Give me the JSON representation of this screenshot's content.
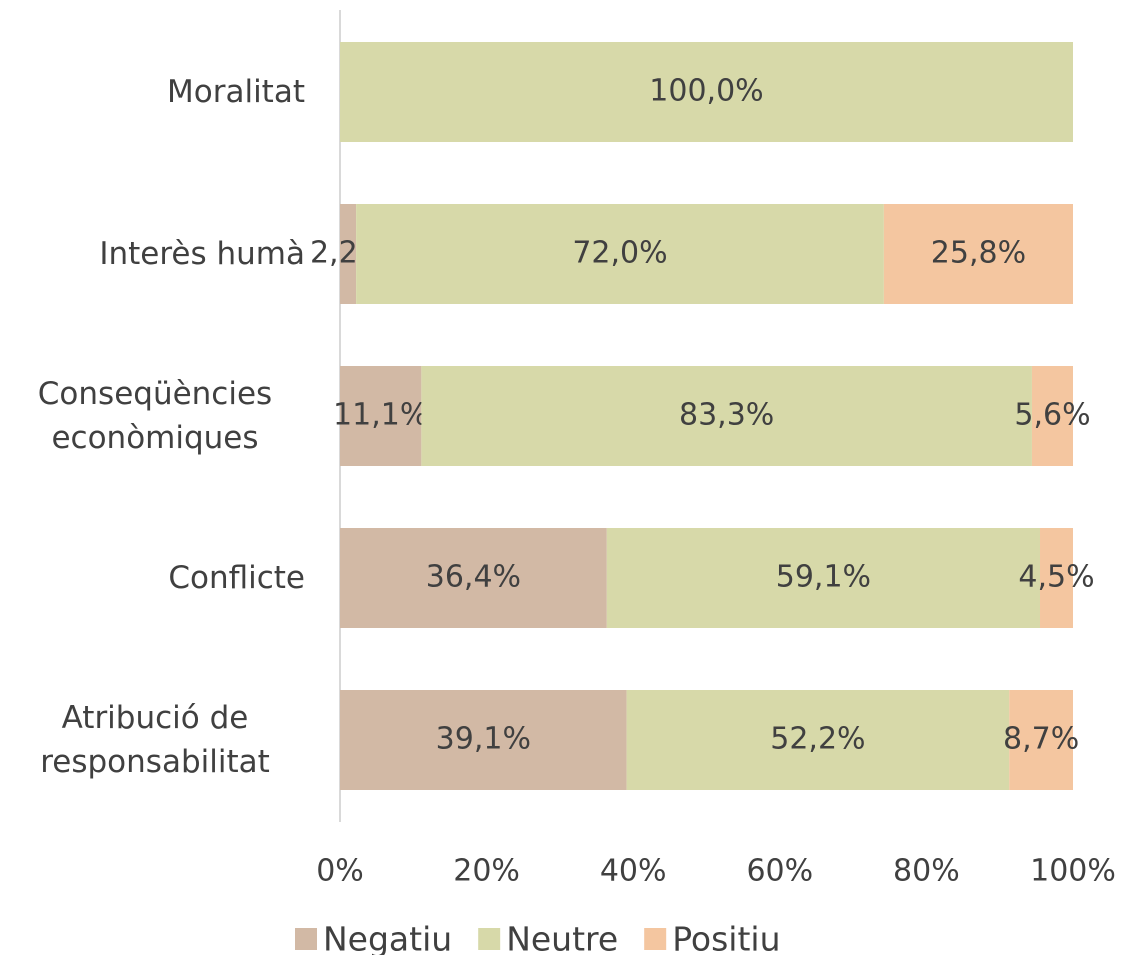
{
  "chart_data": {
    "type": "stacked-barh",
    "categories": [
      "Moralitat",
      "Interès humà",
      "Conseqüències econòmiques",
      "Conflicte",
      "Atribució de responsabilitat"
    ],
    "series": [
      {
        "name": "Negatiu",
        "color": "#d2b9a5",
        "values": [
          null,
          2.2,
          11.1,
          36.4,
          39.1
        ],
        "value_labels": [
          null,
          "2,2%",
          "11,1%",
          "36,4%",
          "39,1%"
        ]
      },
      {
        "name": "Neutre",
        "color": "#d7d9a9",
        "values": [
          100,
          72.0,
          83.3,
          59.1,
          52.2
        ],
        "value_labels": [
          "100,0%",
          "72,0%",
          "83,3%",
          "59,1%",
          "52,2%"
        ]
      },
      {
        "name": "Positiu",
        "color": "#f4c6a0",
        "values": [
          null,
          25.8,
          5.6,
          4.5,
          8.7
        ],
        "value_labels": [
          null,
          "25,8%",
          "5,6%",
          "4,5%",
          "8,7%"
        ]
      }
    ],
    "xlim": [
      0,
      100
    ],
    "xticks": [
      {
        "value": 0,
        "label": "0%"
      },
      {
        "value": 20,
        "label": "20%"
      },
      {
        "value": 40,
        "label": "40%"
      },
      {
        "value": 60,
        "label": "60%"
      },
      {
        "value": 80,
        "label": "80%"
      },
      {
        "value": 100,
        "label": "100%"
      }
    ],
    "grid": false,
    "legend": "bottom"
  }
}
